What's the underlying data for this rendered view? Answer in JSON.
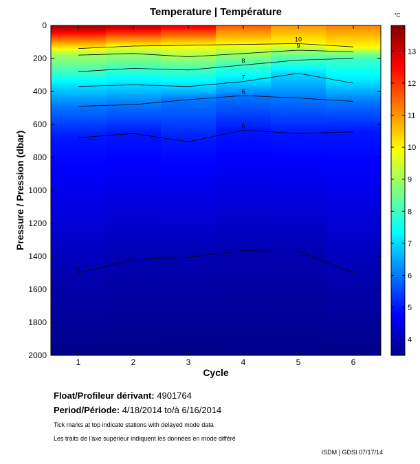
{
  "chart_data": {
    "type": "heatmap",
    "title": "Temperature | Température",
    "xlabel": "Cycle",
    "ylabel": "Pressure / Pression (dbar)",
    "x": [
      1,
      2,
      3,
      4,
      5,
      6
    ],
    "xlim": [
      0.5,
      6.5
    ],
    "ylim": [
      0,
      2000
    ],
    "y_reversed": true,
    "y_ticks": [
      0,
      200,
      400,
      600,
      800,
      1000,
      1200,
      1400,
      1600,
      1800,
      2000
    ],
    "colorbar": {
      "unit": "°C",
      "range": [
        3.5,
        13.8
      ],
      "ticks": [
        4,
        5,
        6,
        7,
        8,
        9,
        10,
        11,
        12,
        13
      ],
      "colormap": "jet"
    },
    "contours": [
      {
        "level": 10,
        "pressure": [
          140,
          125,
          120,
          115,
          110,
          130
        ]
      },
      {
        "level": 9,
        "pressure": [
          180,
          170,
          190,
          170,
          150,
          160
        ]
      },
      {
        "level": 8,
        "pressure": [
          280,
          260,
          270,
          240,
          210,
          200
        ]
      },
      {
        "level": 7,
        "pressure": [
          370,
          360,
          370,
          340,
          290,
          350
        ]
      },
      {
        "level": 6,
        "pressure": [
          490,
          480,
          450,
          425,
          440,
          460
        ]
      },
      {
        "level": 5,
        "pressure": [
          680,
          655,
          705,
          635,
          655,
          645
        ]
      },
      {
        "level": 4,
        "pressure": [
          1500,
          1420,
          1405,
          1365,
          1370,
          1500
        ]
      }
    ]
  },
  "info": {
    "float_label": "Float/Profileur dérivant:",
    "float_value": "4901764",
    "period_label": "Period/Période:",
    "period_value": "4/18/2014  to/à  6/16/2014",
    "note_en": "Tick marks at top indicate stations with delayed mode data",
    "note_fr": "Les traits de l'axe supérieur indiquent les données en mode différé",
    "credit": "ISDM | GDSI  07/17/14"
  }
}
